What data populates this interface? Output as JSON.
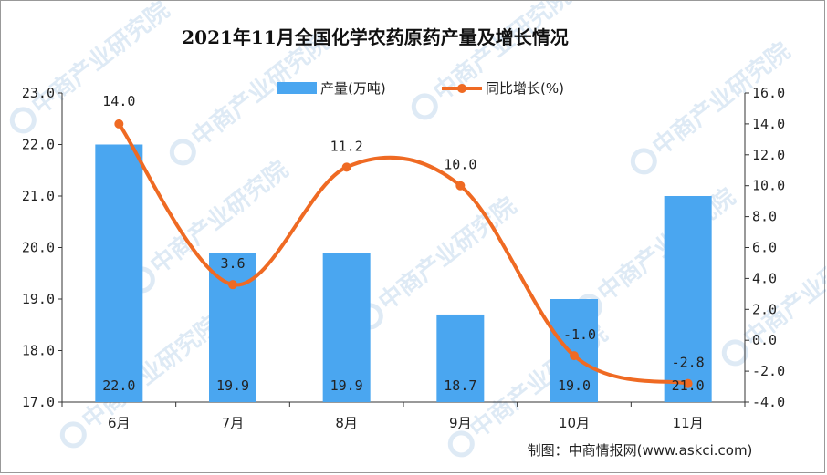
{
  "chart_data": {
    "type": "bar+line",
    "title": "2021年11月全国化学农药原药产量及增长情况",
    "categories": [
      "6月",
      "7月",
      "8月",
      "9月",
      "10月",
      "11月"
    ],
    "series": [
      {
        "name": "产量(万吨)",
        "type": "bar",
        "axis": "left",
        "color": "#4aa6f0",
        "values": [
          22.0,
          19.9,
          19.9,
          18.7,
          19.0,
          21.0
        ]
      },
      {
        "name": "同比增长(%)",
        "type": "line",
        "axis": "right",
        "color": "#ef6a23",
        "values": [
          14.0,
          3.6,
          11.2,
          10.0,
          -1.0,
          -2.8
        ]
      }
    ],
    "left_axis": {
      "min": 17.0,
      "max": 23.0,
      "step": 1.0
    },
    "right_axis": {
      "min": -4.0,
      "max": 16.0,
      "step": 2.0
    },
    "legend_position": "top-center",
    "grid": false
  },
  "source_label": "制图：中商情报网(www.askci.com)",
  "watermark_text": "中商产业研究院"
}
